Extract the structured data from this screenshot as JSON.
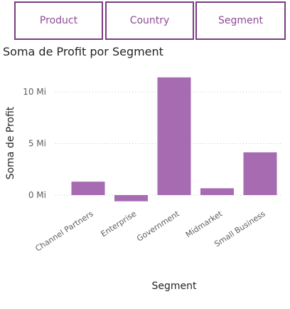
{
  "slicers": [
    {
      "label": "Product"
    },
    {
      "label": "Country"
    },
    {
      "label": "Segment"
    }
  ],
  "colors": {
    "bar": "#a66bb1",
    "slicer_border": "#7a3b82",
    "slicer_text": "#8e4a96",
    "grid": "#c8c6c4"
  },
  "chart_data": {
    "type": "bar",
    "title": "Soma de Profit por Segment",
    "xlabel": "Segment",
    "ylabel": "Soma de Profit",
    "categories": [
      "Channel Partners",
      "Enterprise",
      "Government",
      "Midmarket",
      "Small Business"
    ],
    "values": [
      1.3,
      -0.6,
      11.4,
      0.66,
      4.14
    ],
    "yticks": [
      {
        "value": 0,
        "label": "0 Mi"
      },
      {
        "value": 5,
        "label": "5 Mi"
      },
      {
        "value": 10,
        "label": "10 Mi"
      }
    ],
    "ylim": [
      -0.9,
      12
    ],
    "grid": true,
    "legend": "none"
  }
}
